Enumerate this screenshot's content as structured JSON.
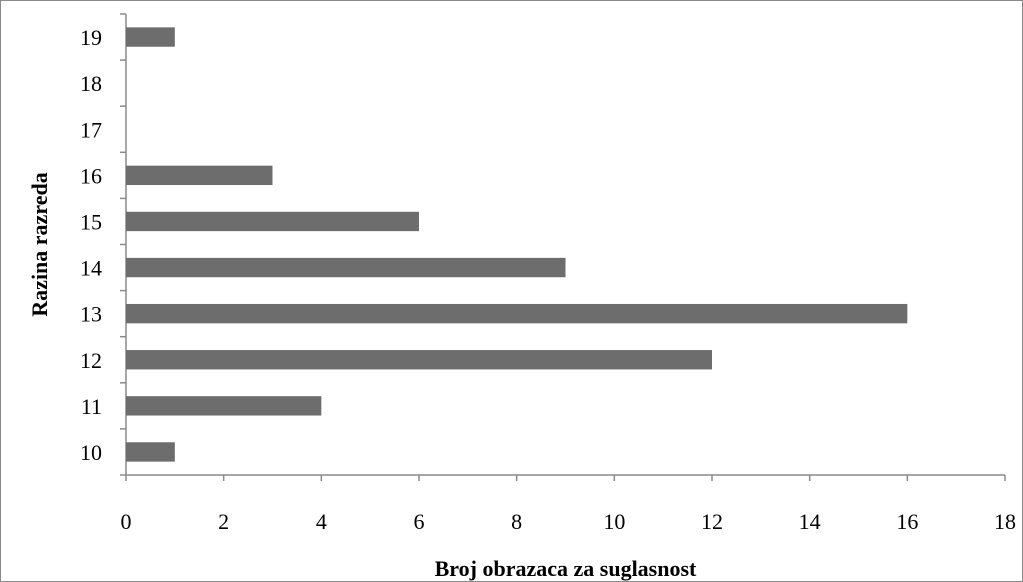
{
  "chart_data": {
    "type": "bar",
    "orientation": "horizontal",
    "categories": [
      "10",
      "11",
      "12",
      "13",
      "14",
      "15",
      "16",
      "17",
      "18",
      "19"
    ],
    "values": [
      1,
      4,
      12,
      16,
      9,
      6,
      3,
      0,
      0,
      1
    ],
    "xlabel": "Broj obrazaca za suglasnost",
    "ylabel": "Razina razreda",
    "xlim": [
      0,
      18
    ],
    "xticks": [
      "0",
      "2",
      "4",
      "6",
      "8",
      "10",
      "12",
      "14",
      "16",
      "18"
    ],
    "grid": false,
    "legend": "none",
    "bar_color": "#6d6d6d",
    "axis_color": "#8a8a8a"
  }
}
